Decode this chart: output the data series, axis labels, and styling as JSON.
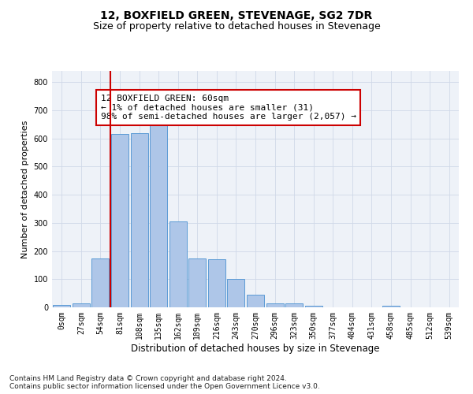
{
  "title": "12, BOXFIELD GREEN, STEVENAGE, SG2 7DR",
  "subtitle": "Size of property relative to detached houses in Stevenage",
  "xlabel": "Distribution of detached houses by size in Stevenage",
  "ylabel": "Number of detached properties",
  "bar_labels": [
    "0sqm",
    "27sqm",
    "54sqm",
    "81sqm",
    "108sqm",
    "135sqm",
    "162sqm",
    "189sqm",
    "216sqm",
    "243sqm",
    "270sqm",
    "296sqm",
    "323sqm",
    "350sqm",
    "377sqm",
    "404sqm",
    "431sqm",
    "458sqm",
    "485sqm",
    "512sqm",
    "539sqm"
  ],
  "bar_values": [
    8,
    13,
    175,
    617,
    620,
    650,
    305,
    173,
    172,
    100,
    45,
    13,
    13,
    5,
    0,
    0,
    0,
    6,
    0,
    0,
    0
  ],
  "bar_color": "#aec6e8",
  "bar_edge_color": "#5b9bd5",
  "grid_color": "#d0d8e8",
  "background_color": "#eef2f8",
  "vline_color": "#cc0000",
  "vline_pos": 2.5,
  "annotation_text": "12 BOXFIELD GREEN: 60sqm\n← 1% of detached houses are smaller (31)\n98% of semi-detached houses are larger (2,057) →",
  "ylim": [
    0,
    840
  ],
  "yticks": [
    0,
    100,
    200,
    300,
    400,
    500,
    600,
    700,
    800
  ],
  "footer": "Contains HM Land Registry data © Crown copyright and database right 2024.\nContains public sector information licensed under the Open Government Licence v3.0.",
  "title_fontsize": 10,
  "subtitle_fontsize": 9,
  "xlabel_fontsize": 8.5,
  "ylabel_fontsize": 8,
  "tick_fontsize": 7,
  "annotation_fontsize": 8,
  "footer_fontsize": 6.5
}
